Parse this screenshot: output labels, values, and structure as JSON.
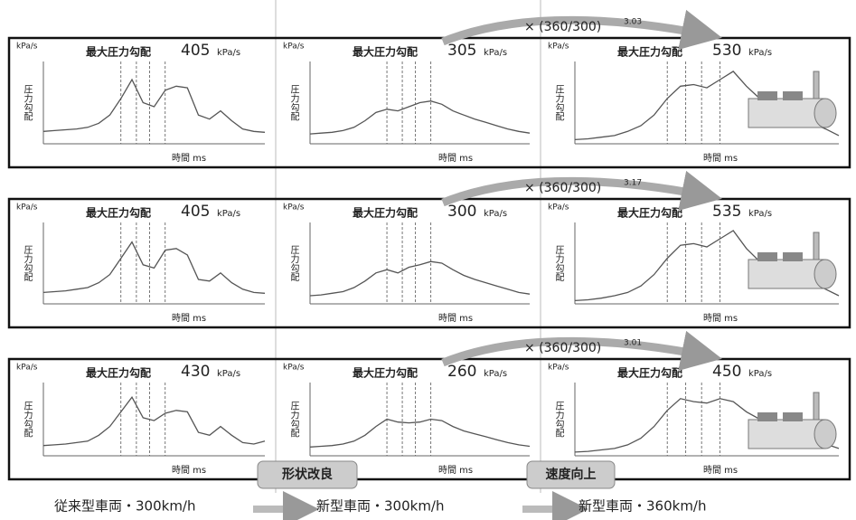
{
  "chart_data": [
    {
      "type": "line",
      "y_unit": "kPa/s",
      "title": "最大圧力勾配",
      "max_gradient": 405,
      "value_unit": "kPa/s",
      "ylabel": "圧力勾配",
      "xlabel": "時間 ms",
      "xlim": [
        0,
        100
      ],
      "ylim": [
        0,
        100
      ],
      "x": [
        0,
        5,
        10,
        15,
        20,
        25,
        30,
        35,
        40,
        45,
        50,
        55,
        60,
        65,
        70,
        75,
        80,
        85,
        90,
        95,
        100
      ],
      "series": [
        {
          "color": "#555555",
          "values": [
            15,
            16,
            17,
            18,
            20,
            25,
            35,
            55,
            78,
            50,
            45,
            65,
            70,
            68,
            35,
            30,
            40,
            28,
            18,
            15,
            14
          ]
        }
      ]
    },
    {
      "type": "line",
      "y_unit": "kPa/s",
      "title": "最大圧力勾配",
      "max_gradient": 305,
      "value_unit": "kPa/s",
      "ylabel": "圧力勾配",
      "xlabel": "時間 ms",
      "xlim": [
        0,
        100
      ],
      "ylim": [
        0,
        100
      ],
      "x": [
        0,
        5,
        10,
        15,
        20,
        25,
        30,
        35,
        40,
        45,
        50,
        55,
        60,
        65,
        70,
        75,
        80,
        85,
        90,
        95,
        100
      ],
      "series": [
        {
          "color": "#555555",
          "values": [
            12,
            13,
            14,
            16,
            20,
            28,
            38,
            42,
            40,
            45,
            50,
            52,
            48,
            40,
            35,
            30,
            26,
            22,
            18,
            15,
            13
          ]
        }
      ]
    },
    {
      "type": "line",
      "y_unit": "kPa/s",
      "title": "最大圧力勾配",
      "max_gradient": 530,
      "value_unit": "kPa/s",
      "ylabel": "圧力勾配",
      "xlabel": "時間 ms",
      "xlim": [
        0,
        100
      ],
      "ylim": [
        0,
        100
      ],
      "x": [
        0,
        5,
        10,
        15,
        20,
        25,
        30,
        35,
        40,
        45,
        50,
        55,
        60,
        65,
        70,
        75,
        80,
        85,
        90,
        95,
        100
      ],
      "series": [
        {
          "color": "#555555",
          "values": [
            5,
            6,
            8,
            10,
            15,
            22,
            35,
            55,
            70,
            72,
            68,
            78,
            88,
            70,
            55,
            48,
            40,
            32,
            25,
            18,
            10
          ]
        }
      ]
    },
    {
      "type": "line",
      "y_unit": "kPa/s",
      "title": "最大圧力勾配",
      "max_gradient": 405,
      "value_unit": "kPa/s",
      "ylabel": "圧力勾配",
      "xlabel": "時間 ms",
      "xlim": [
        0,
        100
      ],
      "ylim": [
        0,
        100
      ],
      "x": [
        0,
        5,
        10,
        15,
        20,
        25,
        30,
        35,
        40,
        45,
        50,
        55,
        60,
        65,
        70,
        75,
        80,
        85,
        90,
        95,
        100
      ],
      "series": [
        {
          "color": "#555555",
          "values": [
            14,
            15,
            16,
            18,
            20,
            26,
            36,
            56,
            76,
            48,
            44,
            66,
            68,
            60,
            30,
            28,
            38,
            26,
            18,
            14,
            13
          ]
        }
      ]
    },
    {
      "type": "line",
      "y_unit": "kPa/s",
      "title": "最大圧力勾配",
      "max_gradient": 300,
      "value_unit": "kPa/s",
      "ylabel": "圧力勾配",
      "xlabel": "時間 ms",
      "xlim": [
        0,
        100
      ],
      "ylim": [
        0,
        100
      ],
      "x": [
        0,
        5,
        10,
        15,
        20,
        25,
        30,
        35,
        40,
        45,
        50,
        55,
        60,
        65,
        70,
        75,
        80,
        85,
        90,
        95,
        100
      ],
      "series": [
        {
          "color": "#555555",
          "values": [
            10,
            11,
            13,
            15,
            20,
            28,
            38,
            42,
            38,
            45,
            48,
            52,
            50,
            42,
            35,
            30,
            26,
            22,
            18,
            14,
            12
          ]
        }
      ]
    },
    {
      "type": "line",
      "y_unit": "kPa/s",
      "title": "最大圧力勾配",
      "max_gradient": 535,
      "value_unit": "kPa/s",
      "ylabel": "圧力勾配",
      "xlabel": "時間 ms",
      "xlim": [
        0,
        100
      ],
      "ylim": [
        0,
        100
      ],
      "x": [
        0,
        5,
        10,
        15,
        20,
        25,
        30,
        35,
        40,
        45,
        50,
        55,
        60,
        65,
        70,
        75,
        80,
        85,
        90,
        95,
        100
      ],
      "series": [
        {
          "color": "#555555",
          "values": [
            4,
            5,
            7,
            10,
            14,
            22,
            36,
            56,
            72,
            74,
            70,
            80,
            90,
            68,
            52,
            46,
            40,
            34,
            26,
            18,
            10
          ]
        }
      ]
    },
    {
      "type": "line",
      "y_unit": "kPa/s",
      "title": "最大圧力勾配",
      "max_gradient": 430,
      "value_unit": "kPa/s",
      "ylabel": "圧力勾配",
      "xlabel": "時間 ms",
      "xlim": [
        0,
        100
      ],
      "ylim": [
        0,
        100
      ],
      "x": [
        0,
        5,
        10,
        15,
        20,
        25,
        30,
        35,
        40,
        45,
        50,
        55,
        60,
        65,
        70,
        75,
        80,
        85,
        90,
        95,
        100
      ],
      "series": [
        {
          "color": "#555555",
          "values": [
            14,
            15,
            16,
            18,
            20,
            28,
            40,
            60,
            80,
            52,
            48,
            58,
            62,
            60,
            32,
            28,
            40,
            28,
            18,
            16,
            20
          ]
        }
      ]
    },
    {
      "type": "line",
      "y_unit": "kPa/s",
      "title": "最大圧力勾配",
      "max_gradient": 260,
      "value_unit": "kPa/s",
      "ylabel": "圧力勾配",
      "xlabel": "時間 ms",
      "xlim": [
        0,
        100
      ],
      "ylim": [
        0,
        100
      ],
      "x": [
        0,
        5,
        10,
        15,
        20,
        25,
        30,
        35,
        40,
        45,
        50,
        55,
        60,
        65,
        70,
        75,
        80,
        85,
        90,
        95,
        100
      ],
      "series": [
        {
          "color": "#555555",
          "values": [
            12,
            13,
            14,
            16,
            20,
            28,
            40,
            50,
            46,
            45,
            46,
            50,
            48,
            40,
            34,
            30,
            26,
            22,
            18,
            15,
            13
          ]
        }
      ]
    },
    {
      "type": "line",
      "y_unit": "kPa/s",
      "title": "最大圧力勾配",
      "max_gradient": 450,
      "value_unit": "kPa/s",
      "ylabel": "圧力勾配",
      "xlabel": "時間 ms",
      "xlim": [
        0,
        100
      ],
      "ylim": [
        0,
        100
      ],
      "x": [
        0,
        5,
        10,
        15,
        20,
        25,
        30,
        35,
        40,
        45,
        50,
        55,
        60,
        65,
        70,
        75,
        80,
        85,
        90,
        95,
        100
      ],
      "series": [
        {
          "color": "#555555",
          "values": [
            5,
            6,
            8,
            10,
            15,
            24,
            40,
            62,
            78,
            74,
            72,
            78,
            74,
            60,
            50,
            44,
            38,
            32,
            24,
            16,
            10
          ]
        }
      ]
    }
  ],
  "ratio_labels": [
    {
      "text": "× (360/300)",
      "exponent": "3.03"
    },
    {
      "text": "× (360/300)",
      "exponent": "3.17"
    },
    {
      "text": "× (360/300)",
      "exponent": "3.01"
    }
  ],
  "step_labels": [
    "形状改良",
    "速度向上"
  ],
  "column_labels": [
    "従来型車両・300km/h",
    "新型車両・300km/h",
    "新型車両・360km/h"
  ]
}
